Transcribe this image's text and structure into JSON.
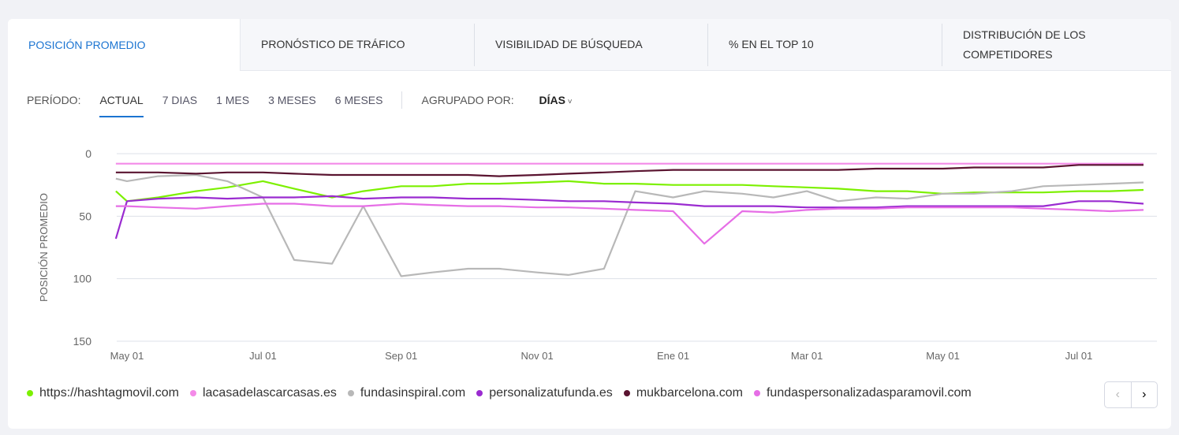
{
  "tabs": [
    {
      "label": "POSICIÓN PROMEDIO"
    },
    {
      "label": "PRONÓSTICO DE TRÁFICO"
    },
    {
      "label": "VISIBILIDAD DE BÚSQUEDA"
    },
    {
      "label": "% EN EL TOP 10"
    },
    {
      "label": "DISTRIBUCIÓN DE LOS COMPETIDORES"
    }
  ],
  "period": {
    "label": "PERÍODO:",
    "options": [
      "ACTUAL",
      "7 DIAS",
      "1 MES",
      "3 MESES",
      "6 MESES"
    ],
    "selected": "ACTUAL",
    "group_label": "AGRUPADO POR:",
    "group_value": "DÍAS",
    "chevron": "chevron-down-icon"
  },
  "pager": {
    "prev": "‹",
    "next": "›"
  },
  "chart_data": {
    "type": "line",
    "ylabel": "POSICIÓN PROMEDIO",
    "yticks": [
      0,
      50,
      100,
      150
    ],
    "ylim": [
      0,
      150
    ],
    "y_inverted": true,
    "grid": true,
    "legend_placement": "bottom",
    "xticks": [
      {
        "date": "2023-05-01",
        "label": "May 01"
      },
      {
        "date": "2023-07-01",
        "label": "Jul 01"
      },
      {
        "date": "2023-09-01",
        "label": "Sep 01"
      },
      {
        "date": "2023-11-01",
        "label": "Nov 01"
      },
      {
        "date": "2024-01-01",
        "label": "Ene 01"
      },
      {
        "date": "2024-03-01",
        "label": "Mar 01"
      },
      {
        "date": "2024-05-01",
        "label": "May 01"
      },
      {
        "date": "2024-07-01",
        "label": "Jul 01"
      }
    ],
    "x": [
      "2023-04-26",
      "2023-05-01",
      "2023-05-15",
      "2023-06-01",
      "2023-06-15",
      "2023-07-01",
      "2023-07-15",
      "2023-08-01",
      "2023-08-15",
      "2023-09-01",
      "2023-09-15",
      "2023-10-01",
      "2023-10-15",
      "2023-11-01",
      "2023-11-15",
      "2023-12-01",
      "2023-12-15",
      "2024-01-01",
      "2024-01-15",
      "2024-02-01",
      "2024-02-15",
      "2024-03-01",
      "2024-03-15",
      "2024-04-01",
      "2024-04-15",
      "2024-05-01",
      "2024-05-15",
      "2024-06-01",
      "2024-06-15",
      "2024-07-01",
      "2024-07-15",
      "2024-07-30"
    ],
    "series": [
      {
        "name": "https://hashtagmovil.com",
        "color": "#7cf000",
        "values": [
          30,
          38,
          35,
          30,
          27,
          22,
          28,
          35,
          30,
          26,
          26,
          24,
          24,
          23,
          22,
          24,
          24,
          25,
          25,
          25,
          26,
          27,
          28,
          30,
          30,
          32,
          31,
          31,
          31,
          30,
          30,
          29
        ]
      },
      {
        "name": "lacasadelascarcasas.es",
        "color": "#f48ae8",
        "values": [
          8,
          8,
          8,
          8,
          8,
          8,
          8,
          8,
          8,
          8,
          8,
          8,
          8,
          8,
          8,
          8,
          8,
          8,
          8,
          8,
          8,
          8,
          8,
          8,
          8,
          8,
          8,
          8,
          8,
          8,
          8,
          8
        ]
      },
      {
        "name": "fundasinspiral.com",
        "color": "#b8b8b8",
        "values": [
          20,
          22,
          18,
          17,
          22,
          35,
          85,
          88,
          42,
          98,
          95,
          92,
          92,
          95,
          97,
          92,
          30,
          35,
          30,
          32,
          35,
          30,
          38,
          35,
          36,
          32,
          32,
          30,
          26,
          25,
          24,
          23
        ]
      },
      {
        "name": "personalizatufunda.es",
        "color": "#9a2bd0",
        "values": [
          68,
          38,
          36,
          35,
          36,
          35,
          35,
          34,
          36,
          35,
          35,
          36,
          36,
          37,
          38,
          38,
          39,
          40,
          42,
          42,
          42,
          43,
          43,
          43,
          42,
          42,
          42,
          42,
          42,
          38,
          38,
          40
        ]
      },
      {
        "name": "mukbarcelona.com",
        "color": "#5a1430",
        "values": [
          15,
          15,
          15,
          16,
          15,
          15,
          16,
          17,
          17,
          17,
          17,
          17,
          18,
          17,
          16,
          15,
          14,
          13,
          13,
          13,
          13,
          13,
          13,
          12,
          12,
          12,
          11,
          11,
          11,
          9,
          9,
          9
        ]
      },
      {
        "name": "fundaspersonalizadasparamovil.com",
        "color": "#e66ee6",
        "values": [
          42,
          42,
          43,
          44,
          42,
          40,
          40,
          42,
          42,
          40,
          41,
          42,
          42,
          43,
          43,
          44,
          45,
          46,
          72,
          46,
          47,
          45,
          44,
          44,
          43,
          43,
          43,
          43,
          44,
          45,
          46,
          45
        ]
      }
    ]
  }
}
